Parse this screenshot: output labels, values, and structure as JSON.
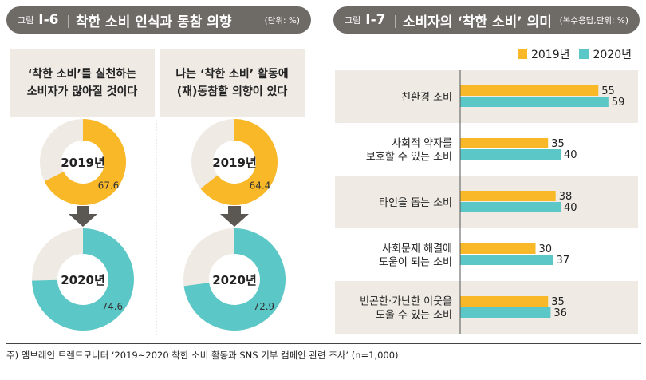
{
  "figure1": {
    "label": "그림",
    "number": "Ⅰ-6",
    "title": "착한 소비 인식과 동참 의향",
    "unit": "(단위: %)",
    "questions": [
      {
        "line1": "‘착한 소비’를 실천하는",
        "line2": "소비자가 많아질 것이다"
      },
      {
        "line1": "나는 ‘착한 소비’ 활동에",
        "line2": "(재)동참할 의향이 있다"
      }
    ]
  },
  "figure2": {
    "label": "그림",
    "number": "Ⅰ-7",
    "title": "소비자의 ‘착한 소비’ 의미",
    "unit": "(복수응답,단위: %)"
  },
  "legend": [
    "2019년",
    "2020년"
  ],
  "colors": {
    "y2019": "#f8b827",
    "y2020": "#5cc7c7",
    "rest": "#efeae4",
    "panel": "#efeae4"
  },
  "footnote": "주) 엠브레인 트렌드모니터 ‘2019~2020 착한 소비 활동과 SNS 기부 캠페인 관련 조사’ (n=1,000)",
  "chart_data": [
    {
      "type": "pie",
      "title": "‘착한 소비’를 실천하는 소비자가 많아질 것이다",
      "unit": "%",
      "series": [
        {
          "name": "2019년",
          "value": 67.6
        },
        {
          "name": "2020년",
          "value": 74.6
        }
      ]
    },
    {
      "type": "pie",
      "title": "나는 ‘착한 소비’ 활동에 (재)동참할 의향이 있다",
      "unit": "%",
      "series": [
        {
          "name": "2019년",
          "value": 64.4
        },
        {
          "name": "2020년",
          "value": 72.9
        }
      ]
    },
    {
      "type": "bar",
      "orientation": "horizontal",
      "title": "소비자의 ‘착한 소비’ 의미",
      "categories": [
        [
          "친환경 소비"
        ],
        [
          "사회적 약자를",
          "보호할 수 있는 소비"
        ],
        [
          "타인을 돕는 소비"
        ],
        [
          "사회문제 해결에",
          "도움이 되는 소비"
        ],
        [
          "빈곤한·가난한 이웃을",
          "도울 수 있는 소비"
        ]
      ],
      "series": [
        {
          "name": "2019년",
          "values": [
            55,
            35,
            38,
            30,
            35
          ]
        },
        {
          "name": "2020년",
          "values": [
            59,
            40,
            40,
            37,
            36
          ]
        }
      ],
      "xlim": [
        0,
        100
      ]
    }
  ]
}
